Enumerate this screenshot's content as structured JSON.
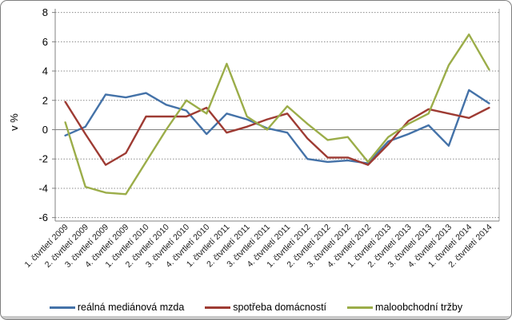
{
  "chart_data": {
    "type": "line",
    "title": "",
    "xlabel": "",
    "ylabel": "v %",
    "ylim": [
      -6,
      8
    ],
    "y_ticks": [
      8,
      6,
      4,
      2,
      0,
      -2,
      -4,
      -6
    ],
    "grid": "dotted horizontal",
    "legend_position": "bottom",
    "categories": [
      "1. čtvrtletí 2009",
      "2. čtvrtletí 2009",
      "3. čtvrtletí 2009",
      "4. čtvrtletí 2009",
      "1. čtvrtletí 2010",
      "2. čtvrtletí 2010",
      "3. čtvrtletí 2010",
      "4. čtvrtletí 2010",
      "1. čtvrtletí 2011",
      "2. čtvrtletí 2011",
      "3. čtvrtletí 2011",
      "4. čtvrtletí 2011",
      "1. čtvrtletí 2012",
      "2. čtvrtletí 2012",
      "3. čtvrtletí 2012",
      "4. čtvrtletí 2012",
      "1. čtvrtletí 2013",
      "2. čtvrtletí 2013",
      "3. čtvrtletí 2013",
      "4. čtvrtletí 2013",
      "1. čtvrtletí 2014",
      "2. čtvrtletí 2014"
    ],
    "series": [
      {
        "name": "reálná mediánová mzda",
        "color": "#4472a8",
        "values": [
          -0.4,
          0.2,
          2.4,
          2.2,
          2.5,
          1.7,
          1.3,
          -0.3,
          1.1,
          0.7,
          0.1,
          -0.2,
          -2.0,
          -2.2,
          -2.1,
          -2.3,
          -0.8,
          -0.3,
          0.3,
          -1.1,
          2.7,
          1.8
        ]
      },
      {
        "name": "spotřeba domácností",
        "color": "#9e3b33",
        "values": [
          1.9,
          -0.3,
          -2.4,
          -1.6,
          0.9,
          0.9,
          0.9,
          1.5,
          -0.2,
          0.2,
          0.7,
          1.1,
          -0.6,
          -1.9,
          -1.9,
          -2.4,
          -1.0,
          0.6,
          1.4,
          1.1,
          0.8,
          1.5
        ]
      },
      {
        "name": "maloobchodní tržby",
        "color": "#9bad49",
        "values": [
          0.5,
          -3.9,
          -4.3,
          -4.4,
          -2.2,
          0.0,
          2.0,
          1.1,
          4.5,
          0.9,
          0.0,
          1.6,
          0.4,
          -0.7,
          -0.5,
          -2.2,
          -0.5,
          0.4,
          1.1,
          4.4,
          6.5,
          4.1
        ]
      }
    ]
  }
}
